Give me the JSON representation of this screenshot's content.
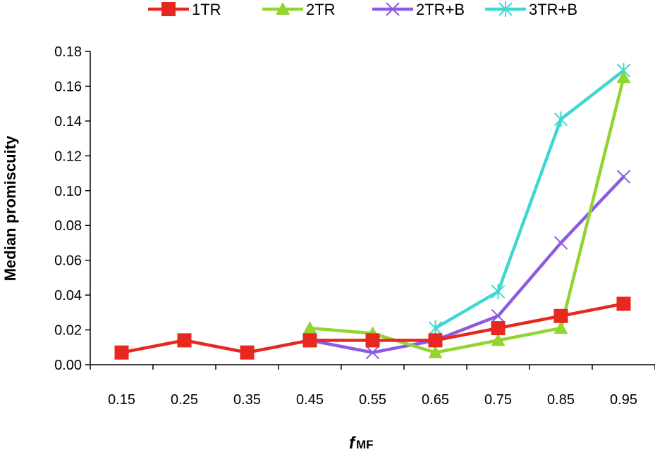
{
  "chart_data": {
    "type": "line",
    "categories": [
      "0.15",
      "0.25",
      "0.35",
      "0.45",
      "0.55",
      "0.65",
      "0.75",
      "0.85",
      "0.95"
    ],
    "series": [
      {
        "name": "1TR",
        "color": "#e8271e",
        "marker": "square",
        "values": [
          0.007,
          0.014,
          0.007,
          0.014,
          0.014,
          0.014,
          0.021,
          0.028,
          0.035
        ]
      },
      {
        "name": "2TR",
        "color": "#92d431",
        "marker": "triangle",
        "values": [
          null,
          null,
          null,
          0.021,
          0.018,
          0.007,
          0.014,
          0.021,
          0.165
        ]
      },
      {
        "name": "2TR+B",
        "color": "#8b5be0",
        "marker": "x",
        "values": [
          null,
          null,
          null,
          0.014,
          0.007,
          0.014,
          0.028,
          0.07,
          0.108
        ]
      },
      {
        "name": "3TR+B",
        "color": "#3ed7d2",
        "marker": "star",
        "values": [
          null,
          null,
          null,
          null,
          null,
          0.021,
          0.042,
          0.141,
          0.169
        ]
      }
    ],
    "ylabel": "Median promiscuity",
    "xlabel": "f",
    "xlabel_sub": "MF",
    "ylim": [
      0,
      0.18
    ],
    "yticks": [
      "0.00",
      "0.02",
      "0.04",
      "0.06",
      "0.08",
      "0.10",
      "0.12",
      "0.14",
      "0.16",
      "0.18"
    ],
    "grid": false,
    "legend_position": "top"
  }
}
